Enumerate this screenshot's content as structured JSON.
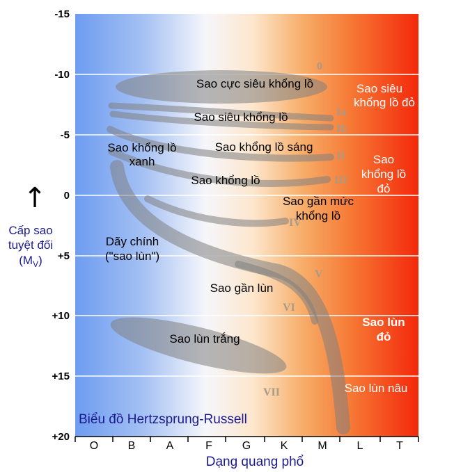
{
  "title": "Biểu đồ Hertzsprung-Russell",
  "x_axis": {
    "label": "Dạng quang phổ",
    "ticks": [
      "O",
      "B",
      "A",
      "F",
      "G",
      "K",
      "M",
      "L",
      "T"
    ]
  },
  "y_axis": {
    "label_lines": [
      "Cấp sao",
      "tuyệt đối"
    ],
    "label_symbol": "(M",
    "label_sub": "V",
    "label_close": ")",
    "arrow": "↑",
    "ticks": [
      "-15",
      "-10",
      "-5",
      "0",
      "+5",
      "+10",
      "+15",
      "+20"
    ]
  },
  "regions": {
    "hypergiants": "Sao cực siêu khổng lồ",
    "supergiants": "Sao siêu khổng lồ",
    "blue_giants_1": "Sao khổng lồ",
    "blue_giants_2": "xanh",
    "bright_giants": "Sao khổng lồ sáng",
    "giants": "Sao khổng lồ",
    "subgiants_1": "Sao gần mức",
    "subgiants_2": "khổng lồ",
    "main_seq_1": "Dãy chính",
    "main_seq_2": "(\"sao lùn\")",
    "subdwarfs": "Sao gần lùn",
    "white_dwarfs": "Sao lùn trắng",
    "red_supergiants_1": "Sao siêu",
    "red_supergiants_2": "khổng lồ đỏ",
    "red_giants_1": "Sao",
    "red_giants_2": "khổng lồ",
    "red_giants_3": "đỏ",
    "red_dwarfs_1": "Sao lùn",
    "red_dwarfs_2": "đỏ",
    "brown_dwarfs": "Sao lùn nâu"
  },
  "luminosity_classes": [
    "0",
    "Ia",
    "Ib",
    "II",
    "III",
    "IV",
    "V",
    "VI",
    "VII"
  ],
  "colors": {
    "blue": "#6e9cf2",
    "white": "#ffffff",
    "orange": "#f7a050",
    "red": "#f4280a",
    "band": "#808080",
    "axis_text": "#1a1a8c"
  }
}
